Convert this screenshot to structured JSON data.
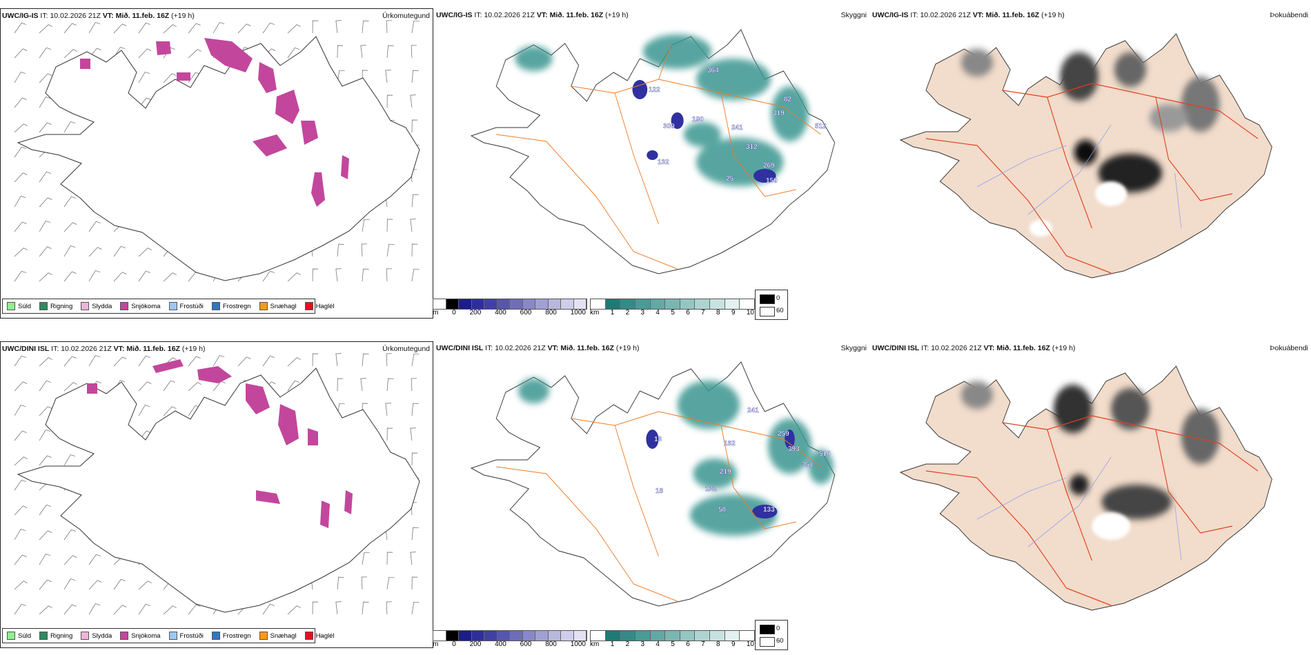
{
  "colors": {
    "snow": "#c2479c",
    "teal": "#2e8a84",
    "road": "#ee7a26",
    "fog_bg": "#f2dccb",
    "accent_blue": "#3a3aa8"
  },
  "panels": {
    "top": {
      "urkoma": {
        "source": "UWC/IG-IS",
        "it_label": "IT:",
        "it": "10.02.2026 21Z",
        "vt_label": "VT:",
        "vt": "Mið. 11.feb. 16Z",
        "lead": "(+19 h)",
        "param": "Úrkomutegund"
      },
      "skyggni": {
        "source": "UWC/IG-IS",
        "it_label": "IT:",
        "it": "10.02.2026 21Z",
        "vt_label": "VT:",
        "vt": "Mið. 11.feb. 16Z",
        "lead": "(+19 h)",
        "param": "Skyggni",
        "labels": [
          "364",
          "122",
          "319",
          "241",
          "132",
          "159",
          "269",
          "312",
          "25",
          "190",
          "300",
          "512",
          "82"
        ]
      },
      "thoka": {
        "source": "UWC/IG-IS",
        "it_label": "IT:",
        "it": "10.02.2026 21Z",
        "vt_label": "VT:",
        "vt": "Mið. 11.feb. 16Z",
        "lead": "(+19 h)",
        "param": "Þokuábendi"
      }
    },
    "bottom": {
      "urkoma": {
        "source": "UWC/DINI ISL",
        "it_label": "IT:",
        "it": "10.02.2026 21Z",
        "vt_label": "VT:",
        "vt": "Mið. 11.feb. 16Z",
        "lead": "(+19 h)",
        "param": "Úrkomutegund"
      },
      "skyggni": {
        "source": "UWC/DINI ISL",
        "it_label": "IT:",
        "it": "10.02.2026 21Z",
        "vt_label": "VT:",
        "vt": "Mið. 11.feb. 16Z",
        "lead": "(+19 h)",
        "param": "Skyggni",
        "labels": [
          "241",
          "259",
          "393",
          "162",
          "219",
          "132",
          "58",
          "133",
          "18",
          "13",
          "510",
          "351"
        ]
      },
      "thoka": {
        "source": "UWC/DINI ISL",
        "it_label": "IT:",
        "it": "10.02.2026 21Z",
        "vt_label": "VT:",
        "vt": "Mið. 11.feb. 16Z",
        "lead": "(+19 h)",
        "param": "Þokuábendi"
      }
    }
  },
  "precip_legend": [
    {
      "label": "Súld",
      "color": "#8ef08e"
    },
    {
      "label": "Rigning",
      "color": "#2f8a5e"
    },
    {
      "label": "Slydda",
      "color": "#f2b2da"
    },
    {
      "label": "Snjókoma",
      "color": "#c2479c"
    },
    {
      "label": "Frostúði",
      "color": "#9cc8f2"
    },
    {
      "label": "Frostregn",
      "color": "#2f78c2"
    },
    {
      "label": "Snæhagl",
      "color": "#f59a1c"
    },
    {
      "label": "Haglél",
      "color": "#e4101c"
    }
  ],
  "ceiling_bar": {
    "unit": "m",
    "ticks": [
      "0",
      "200",
      "400",
      "600",
      "800",
      "1000"
    ],
    "colors": [
      "#ffffff",
      "#000000",
      "#1c1c8c",
      "#2e2e98",
      "#4040a0",
      "#5656ac",
      "#6e6eb8",
      "#8888c6",
      "#a0a0d2",
      "#b8b8de",
      "#ceceea",
      "#e2e2f4"
    ]
  },
  "vis_bar": {
    "unit": "km",
    "ticks": [
      "1",
      "2",
      "3",
      "4",
      "5",
      "6",
      "7",
      "8",
      "9",
      "10"
    ],
    "colors": [
      "#ffffff",
      "#1f7a76",
      "#348a86",
      "#4a9a96",
      "#62a8a4",
      "#7ab6b2",
      "#94c6c2",
      "#aed4d2",
      "#c8e2e0",
      "#e2f0ef",
      "#ffffff"
    ]
  },
  "fog_legend": {
    "high": "0",
    "low": "60"
  }
}
